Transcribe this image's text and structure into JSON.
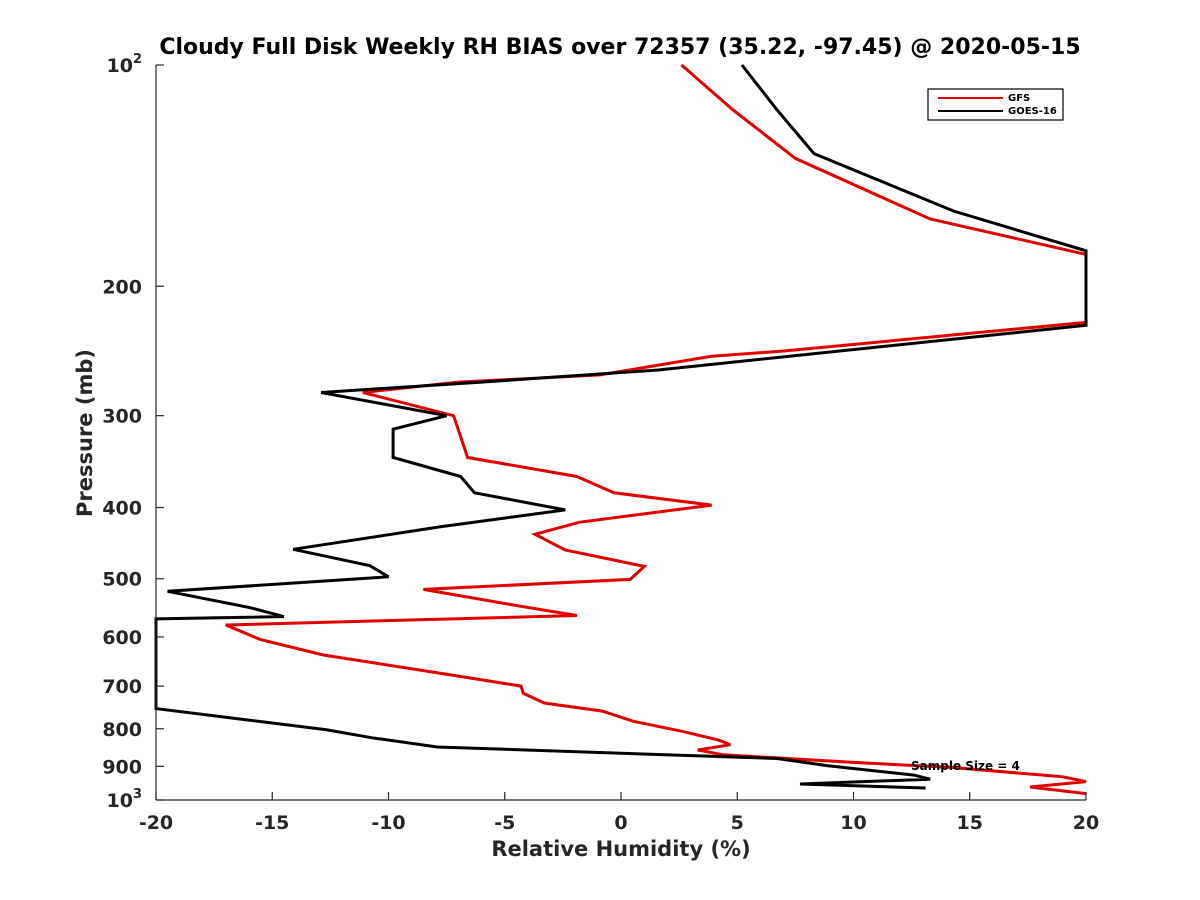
{
  "chart_data": {
    "type": "line",
    "title": "Cloudy Full Disk Weekly RH BIAS over 72357 (35.22, -97.45) @ 2020-05-15",
    "xlabel": "Relative Humidity (%)",
    "ylabel": "Pressure (mb)",
    "xlim": [
      -20,
      20
    ],
    "ylim": [
      100,
      1000
    ],
    "y_scale": "log",
    "y_reversed": true,
    "x_ticks": [
      "-20",
      "-15",
      "-10",
      "-5",
      "0",
      "5",
      "10",
      "15",
      "20"
    ],
    "y_ticks": [
      {
        "value": 100,
        "base": "10",
        "exp": "2"
      },
      {
        "value": 200,
        "label": "200"
      },
      {
        "value": 300,
        "label": "300"
      },
      {
        "value": 400,
        "label": "400"
      },
      {
        "value": 500,
        "label": "500"
      },
      {
        "value": 600,
        "label": "600"
      },
      {
        "value": 700,
        "label": "700"
      },
      {
        "value": 800,
        "label": "800"
      },
      {
        "value": 900,
        "label": "900"
      },
      {
        "value": 1000,
        "base": "10",
        "exp": "3"
      }
    ],
    "grid": false,
    "legend_position": "top-right",
    "annotation": "Sample Size = 4",
    "series": [
      {
        "name": "GFS",
        "color": "#e00000",
        "points": [
          [
            2.6,
            100
          ],
          [
            4.8,
            115
          ],
          [
            7.5,
            134
          ],
          [
            13.3,
            162
          ],
          [
            20.0,
            181
          ],
          [
            20.0,
            224
          ],
          [
            7.0,
            245
          ],
          [
            3.9,
            249
          ],
          [
            -0.9,
            264
          ],
          [
            -7.0,
            270
          ],
          [
            -11.1,
            279
          ],
          [
            -7.2,
            300
          ],
          [
            -6.6,
            342
          ],
          [
            -1.9,
            363
          ],
          [
            -0.3,
            382
          ],
          [
            3.9,
            397
          ],
          [
            -1.8,
            419
          ],
          [
            -3.7,
            435
          ],
          [
            -2.4,
            457
          ],
          [
            1.0,
            481
          ],
          [
            0.4,
            501
          ],
          [
            -8.5,
            517
          ],
          [
            -4.3,
            545
          ],
          [
            -1.9,
            561
          ],
          [
            -17.0,
            578
          ],
          [
            -15.5,
            605
          ],
          [
            -12.8,
            635
          ],
          [
            -7.3,
            676
          ],
          [
            -4.3,
            700
          ],
          [
            -4.2,
            716
          ],
          [
            -3.3,
            738
          ],
          [
            -0.8,
            757
          ],
          [
            0.5,
            781
          ],
          [
            2.6,
            806
          ],
          [
            4.2,
            829
          ],
          [
            4.7,
            841
          ],
          [
            3.3,
            855
          ],
          [
            4.4,
            868
          ],
          [
            10.0,
            889
          ],
          [
            14.2,
            903
          ],
          [
            19.0,
            930
          ],
          [
            20.0,
            944
          ],
          [
            17.6,
            960
          ],
          [
            20.0,
            980
          ]
        ]
      },
      {
        "name": "GOES-16",
        "color": "#000000",
        "points": [
          [
            5.2,
            100
          ],
          [
            6.7,
            115
          ],
          [
            8.3,
            132
          ],
          [
            14.3,
            158
          ],
          [
            20.0,
            179
          ],
          [
            20.0,
            226
          ],
          [
            1.6,
            260
          ],
          [
            -6.0,
            270
          ],
          [
            -12.9,
            279
          ],
          [
            -7.5,
            300
          ],
          [
            -9.8,
            313
          ],
          [
            -9.8,
            342
          ],
          [
            -6.9,
            363
          ],
          [
            -6.3,
            382
          ],
          [
            -2.4,
            403
          ],
          [
            -7.8,
            425
          ],
          [
            -14.1,
            456
          ],
          [
            -10.8,
            480
          ],
          [
            -10.0,
            497
          ],
          [
            -19.5,
            520
          ],
          [
            -16.0,
            547
          ],
          [
            -14.5,
            563
          ],
          [
            -20.0,
            567
          ],
          [
            -20.0,
            751
          ],
          [
            -16.1,
            778
          ],
          [
            -12.7,
            802
          ],
          [
            -10.7,
            823
          ],
          [
            -7.9,
            847
          ],
          [
            6.7,
            878
          ],
          [
            8.9,
            898
          ],
          [
            12.6,
            925
          ],
          [
            13.3,
            937
          ],
          [
            7.7,
            951
          ],
          [
            13.1,
            963
          ]
        ]
      }
    ]
  }
}
